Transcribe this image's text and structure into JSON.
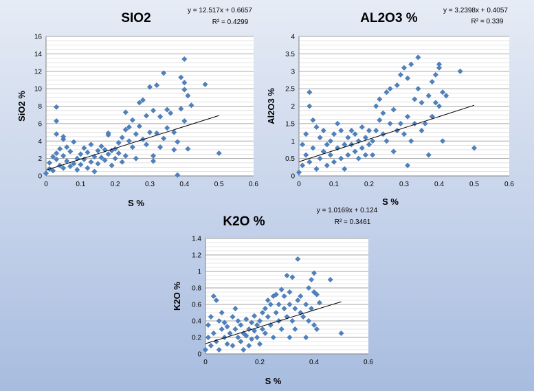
{
  "chart_data": [
    {
      "type": "scatter",
      "title": "SIO2",
      "xlabel": "S %",
      "ylabel": "SiO2 %",
      "xlim": [
        0,
        0.6
      ],
      "ylim": [
        0,
        16
      ],
      "xticks": [
        "0",
        "0.1",
        "0.2",
        "0.3",
        "0.4",
        "0.5",
        "0.6"
      ],
      "yticks": [
        "0",
        "2",
        "4",
        "6",
        "8",
        "10",
        "12",
        "14",
        "16"
      ],
      "trendline": {
        "slope": 12.517,
        "intercept": 0.6657,
        "x_range": [
          0,
          0.5
        ]
      },
      "equation": "y = 12.517x + 0.6657",
      "r2": "R² = 0.4299",
      "grid": "horizontal",
      "marker_color": "#4f81bd",
      "points": [
        [
          0.0,
          0.3
        ],
        [
          0.01,
          0.8
        ],
        [
          0.01,
          1.5
        ],
        [
          0.02,
          2.2
        ],
        [
          0.02,
          0.6
        ],
        [
          0.03,
          1.9
        ],
        [
          0.03,
          2.6
        ],
        [
          0.03,
          7.9
        ],
        [
          0.03,
          6.3
        ],
        [
          0.03,
          4.8
        ],
        [
          0.04,
          1.2
        ],
        [
          0.04,
          3.1
        ],
        [
          0.05,
          0.9
        ],
        [
          0.05,
          2.3
        ],
        [
          0.05,
          4.2
        ],
        [
          0.05,
          4.5
        ],
        [
          0.06,
          1.7
        ],
        [
          0.06,
          3.3
        ],
        [
          0.07,
          1.1
        ],
        [
          0.07,
          2.8
        ],
        [
          0.08,
          1.4
        ],
        [
          0.08,
          3.9
        ],
        [
          0.09,
          2.0
        ],
        [
          0.09,
          0.7
        ],
        [
          0.1,
          2.5
        ],
        [
          0.1,
          1.3
        ],
        [
          0.11,
          3.2
        ],
        [
          0.11,
          1.9
        ],
        [
          0.12,
          2.7
        ],
        [
          0.12,
          0.9
        ],
        [
          0.13,
          3.6
        ],
        [
          0.13,
          1.6
        ],
        [
          0.14,
          2.2
        ],
        [
          0.14,
          0.5
        ],
        [
          0.15,
          2.9
        ],
        [
          0.15,
          1.4
        ],
        [
          0.16,
          3.4
        ],
        [
          0.16,
          2.1
        ],
        [
          0.17,
          1.8
        ],
        [
          0.17,
          3.0
        ],
        [
          0.18,
          2.5
        ],
        [
          0.18,
          4.7
        ],
        [
          0.18,
          4.9
        ],
        [
          0.19,
          2.9
        ],
        [
          0.19,
          1.2
        ],
        [
          0.2,
          3.1
        ],
        [
          0.2,
          2.0
        ],
        [
          0.21,
          2.6
        ],
        [
          0.21,
          3.8
        ],
        [
          0.22,
          4.4
        ],
        [
          0.22,
          1.6
        ],
        [
          0.23,
          5.3
        ],
        [
          0.23,
          2.3
        ],
        [
          0.23,
          7.3
        ],
        [
          0.24,
          4.0
        ],
        [
          0.24,
          5.6
        ],
        [
          0.25,
          3.3
        ],
        [
          0.25,
          6.4
        ],
        [
          0.26,
          4.8
        ],
        [
          0.26,
          2.0
        ],
        [
          0.27,
          8.4
        ],
        [
          0.27,
          5.7
        ],
        [
          0.28,
          4.2
        ],
        [
          0.28,
          8.7
        ],
        [
          0.29,
          6.9
        ],
        [
          0.29,
          3.6
        ],
        [
          0.3,
          5.0
        ],
        [
          0.3,
          10.2
        ],
        [
          0.31,
          2.3
        ],
        [
          0.31,
          1.7
        ],
        [
          0.31,
          7.5
        ],
        [
          0.32,
          10.4
        ],
        [
          0.32,
          4.9
        ],
        [
          0.33,
          3.3
        ],
        [
          0.33,
          6.8
        ],
        [
          0.34,
          11.8
        ],
        [
          0.34,
          4.3
        ],
        [
          0.35,
          7.6
        ],
        [
          0.35,
          5.5
        ],
        [
          0.36,
          7.2
        ],
        [
          0.37,
          3.0
        ],
        [
          0.37,
          5.0
        ],
        [
          0.38,
          0.1
        ],
        [
          0.38,
          3.9
        ],
        [
          0.39,
          11.3
        ],
        [
          0.39,
          7.7
        ],
        [
          0.4,
          13.4
        ],
        [
          0.4,
          10.7
        ],
        [
          0.4,
          9.9
        ],
        [
          0.4,
          6.3
        ],
        [
          0.41,
          3.1
        ],
        [
          0.41,
          9.2
        ],
        [
          0.42,
          8.1
        ],
        [
          0.46,
          10.5
        ],
        [
          0.5,
          2.6
        ]
      ]
    },
    {
      "type": "scatter",
      "title": "AL2O3 %",
      "xlabel": "S %",
      "ylabel": "Al2O3 %",
      "xlim": [
        0,
        0.6
      ],
      "ylim": [
        0,
        4
      ],
      "xticks": [
        "0",
        "0.1",
        "0.2",
        "0.3",
        "0.4",
        "0.5",
        "0.6"
      ],
      "yticks": [
        "0",
        "0.5",
        "1",
        "1.5",
        "2",
        "2.5",
        "3",
        "3.5",
        "4"
      ],
      "trendline": {
        "slope": 3.2398,
        "intercept": 0.4057,
        "x_range": [
          0,
          0.5
        ]
      },
      "equation": "y = 3.2398x + 0.4057",
      "r2": "R² = 0.339",
      "grid": "horizontal",
      "marker_color": "#4f81bd",
      "points": [
        [
          0.0,
          0.1
        ],
        [
          0.01,
          0.3
        ],
        [
          0.01,
          0.9
        ],
        [
          0.02,
          0.6
        ],
        [
          0.02,
          1.2
        ],
        [
          0.03,
          2.4
        ],
        [
          0.03,
          2.0
        ],
        [
          0.03,
          0.4
        ],
        [
          0.04,
          1.6
        ],
        [
          0.04,
          0.8
        ],
        [
          0.05,
          1.4
        ],
        [
          0.05,
          0.2
        ],
        [
          0.06,
          1.1
        ],
        [
          0.06,
          0.5
        ],
        [
          0.07,
          1.3
        ],
        [
          0.07,
          0.7
        ],
        [
          0.08,
          0.9
        ],
        [
          0.08,
          0.3
        ],
        [
          0.09,
          1.0
        ],
        [
          0.09,
          0.6
        ],
        [
          0.1,
          1.2
        ],
        [
          0.1,
          0.4
        ],
        [
          0.11,
          0.8
        ],
        [
          0.11,
          1.5
        ],
        [
          0.12,
          1.3
        ],
        [
          0.12,
          0.5
        ],
        [
          0.13,
          0.9
        ],
        [
          0.13,
          0.2
        ],
        [
          0.14,
          1.1
        ],
        [
          0.14,
          0.6
        ],
        [
          0.15,
          1.3
        ],
        [
          0.15,
          0.9
        ],
        [
          0.16,
          0.7
        ],
        [
          0.16,
          1.2
        ],
        [
          0.17,
          1.0
        ],
        [
          0.17,
          0.5
        ],
        [
          0.18,
          1.4
        ],
        [
          0.18,
          0.8
        ],
        [
          0.19,
          1.1
        ],
        [
          0.19,
          0.6
        ],
        [
          0.2,
          1.3
        ],
        [
          0.2,
          0.9
        ],
        [
          0.21,
          1.0
        ],
        [
          0.21,
          0.6
        ],
        [
          0.22,
          2.0
        ],
        [
          0.22,
          1.3
        ],
        [
          0.23,
          2.2
        ],
        [
          0.23,
          1.6
        ],
        [
          0.24,
          1.2
        ],
        [
          0.24,
          1.8
        ],
        [
          0.25,
          2.4
        ],
        [
          0.25,
          1.0
        ],
        [
          0.26,
          1.5
        ],
        [
          0.26,
          2.5
        ],
        [
          0.27,
          1.9
        ],
        [
          0.27,
          0.7
        ],
        [
          0.28,
          2.6
        ],
        [
          0.28,
          1.3
        ],
        [
          0.29,
          2.9
        ],
        [
          0.29,
          1.5
        ],
        [
          0.3,
          3.1
        ],
        [
          0.3,
          1.2
        ],
        [
          0.31,
          0.3
        ],
        [
          0.31,
          2.8
        ],
        [
          0.31,
          1.7
        ],
        [
          0.32,
          3.2
        ],
        [
          0.32,
          1.0
        ],
        [
          0.33,
          2.2
        ],
        [
          0.33,
          1.5
        ],
        [
          0.34,
          3.4
        ],
        [
          0.34,
          2.5
        ],
        [
          0.35,
          2.1
        ],
        [
          0.35,
          1.3
        ],
        [
          0.36,
          1.5
        ],
        [
          0.37,
          0.6
        ],
        [
          0.37,
          2.3
        ],
        [
          0.38,
          2.7
        ],
        [
          0.38,
          1.7
        ],
        [
          0.39,
          2.9
        ],
        [
          0.39,
          2.1
        ],
        [
          0.4,
          3.2
        ],
        [
          0.4,
          3.1
        ],
        [
          0.4,
          2.0
        ],
        [
          0.41,
          1.0
        ],
        [
          0.41,
          2.4
        ],
        [
          0.42,
          2.3
        ],
        [
          0.46,
          3.0
        ],
        [
          0.5,
          0.8
        ]
      ]
    },
    {
      "type": "scatter",
      "title": "K2O %",
      "xlabel": "S %",
      "ylabel": "K2O %",
      "xlim": [
        0,
        0.6
      ],
      "ylim": [
        0,
        1.4
      ],
      "xticks": [
        "0",
        "0.2",
        "0.4",
        "0.6"
      ],
      "yticks": [
        "0",
        "0.2",
        "0.4",
        "0.6",
        "0.8",
        "1",
        "1.2",
        "1.4"
      ],
      "trendline": {
        "slope": 1.0169,
        "intercept": 0.124,
        "x_range": [
          0,
          0.5
        ]
      },
      "equation": "y = 1.0169x + 0.124",
      "r2": "R² = 0.3461",
      "grid": "horizontal",
      "marker_color": "#4f81bd",
      "points": [
        [
          0.0,
          0.05
        ],
        [
          0.01,
          0.2
        ],
        [
          0.01,
          0.35
        ],
        [
          0.02,
          0.1
        ],
        [
          0.02,
          0.45
        ],
        [
          0.03,
          0.7
        ],
        [
          0.03,
          0.25
        ],
        [
          0.04,
          0.65
        ],
        [
          0.04,
          0.15
        ],
        [
          0.05,
          0.4
        ],
        [
          0.05,
          0.05
        ],
        [
          0.06,
          0.3
        ],
        [
          0.06,
          0.5
        ],
        [
          0.07,
          0.2
        ],
        [
          0.07,
          0.38
        ],
        [
          0.08,
          0.12
        ],
        [
          0.08,
          0.33
        ],
        [
          0.09,
          0.25
        ],
        [
          0.1,
          0.45
        ],
        [
          0.1,
          0.1
        ],
        [
          0.11,
          0.3
        ],
        [
          0.11,
          0.55
        ],
        [
          0.12,
          0.2
        ],
        [
          0.12,
          0.4
        ],
        [
          0.13,
          0.15
        ],
        [
          0.13,
          0.35
        ],
        [
          0.14,
          0.25
        ],
        [
          0.14,
          0.05
        ],
        [
          0.15,
          0.42
        ],
        [
          0.15,
          0.22
        ],
        [
          0.16,
          0.3
        ],
        [
          0.16,
          0.1
        ],
        [
          0.17,
          0.38
        ],
        [
          0.17,
          0.18
        ],
        [
          0.18,
          0.28
        ],
        [
          0.18,
          0.46
        ],
        [
          0.19,
          0.2
        ],
        [
          0.19,
          0.35
        ],
        [
          0.2,
          0.4
        ],
        [
          0.2,
          0.12
        ],
        [
          0.21,
          0.3
        ],
        [
          0.21,
          0.5
        ],
        [
          0.22,
          0.55
        ],
        [
          0.22,
          0.25
        ],
        [
          0.23,
          0.45
        ],
        [
          0.23,
          0.65
        ],
        [
          0.24,
          0.35
        ],
        [
          0.24,
          0.6
        ],
        [
          0.25,
          0.7
        ],
        [
          0.25,
          0.2
        ],
        [
          0.26,
          0.5
        ],
        [
          0.26,
          0.72
        ],
        [
          0.27,
          0.4
        ],
        [
          0.27,
          0.6
        ],
        [
          0.28,
          0.78
        ],
        [
          0.28,
          0.3
        ],
        [
          0.29,
          0.55
        ],
        [
          0.29,
          0.7
        ],
        [
          0.3,
          0.95
        ],
        [
          0.3,
          0.45
        ],
        [
          0.31,
          0.2
        ],
        [
          0.31,
          0.6
        ],
        [
          0.31,
          0.75
        ],
        [
          0.32,
          0.93
        ],
        [
          0.32,
          0.4
        ],
        [
          0.33,
          0.55
        ],
        [
          0.33,
          0.3
        ],
        [
          0.34,
          1.15
        ],
        [
          0.34,
          0.65
        ],
        [
          0.35,
          0.5
        ],
        [
          0.35,
          0.7
        ],
        [
          0.36,
          0.45
        ],
        [
          0.37,
          0.2
        ],
        [
          0.37,
          0.6
        ],
        [
          0.38,
          0.8
        ],
        [
          0.38,
          0.4
        ],
        [
          0.39,
          0.9
        ],
        [
          0.39,
          0.55
        ],
        [
          0.4,
          0.98
        ],
        [
          0.4,
          0.75
        ],
        [
          0.4,
          0.35
        ],
        [
          0.41,
          0.3
        ],
        [
          0.41,
          0.72
        ],
        [
          0.42,
          0.62
        ],
        [
          0.46,
          0.9
        ],
        [
          0.5,
          0.25
        ]
      ]
    }
  ]
}
